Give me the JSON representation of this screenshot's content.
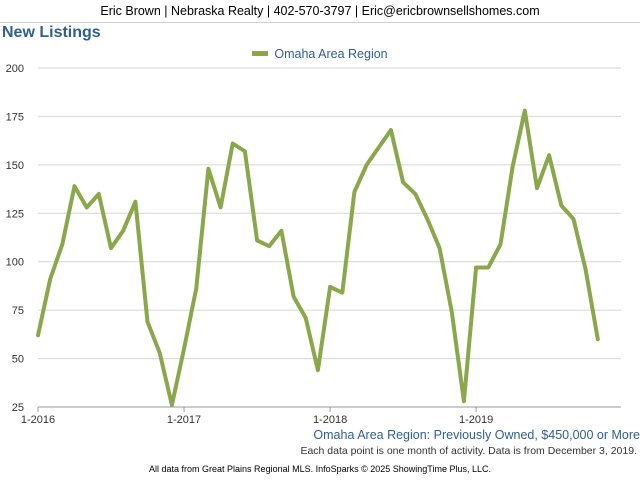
{
  "header": {
    "contact": "Eric Brown | Nebraska Realty | 402-570-3797 | Eric@ericbrownsellshomes.com"
  },
  "chart_title": "New Listings",
  "legend_label": "Omaha Area Region",
  "subtitle": "Omaha Area Region: Previously Owned, $450,000 or More",
  "note": "Each data point is one month of activity. Data is from December 3, 2019.",
  "footer": "All data from Great Plains Regional MLS. InfoSparks © 2025 ShowingTime Plus, LLC.",
  "colors": {
    "series": "#8aa84b",
    "title": "#2f5f91",
    "grid": "#d6d6d6"
  },
  "chart_data": {
    "type": "line",
    "title": "New Listings",
    "ylim": [
      25,
      200
    ],
    "yticks": [
      25,
      50,
      75,
      100,
      125,
      150,
      175,
      200
    ],
    "xtick_labels": [
      "1-2016",
      "1-2017",
      "1-2018",
      "1-2019"
    ],
    "grid": true,
    "legend_position": "top-center",
    "x": [
      "2016-01",
      "2016-02",
      "2016-03",
      "2016-04",
      "2016-05",
      "2016-06",
      "2016-07",
      "2016-08",
      "2016-09",
      "2016-10",
      "2016-11",
      "2016-12",
      "2017-01",
      "2017-02",
      "2017-03",
      "2017-04",
      "2017-05",
      "2017-06",
      "2017-07",
      "2017-08",
      "2017-09",
      "2017-10",
      "2017-11",
      "2017-12",
      "2018-01",
      "2018-02",
      "2018-03",
      "2018-04",
      "2018-05",
      "2018-06",
      "2018-07",
      "2018-08",
      "2018-09",
      "2018-10",
      "2018-11",
      "2018-12",
      "2019-01",
      "2019-02",
      "2019-03",
      "2019-04",
      "2019-05",
      "2019-06",
      "2019-07",
      "2019-08",
      "2019-09",
      "2019-10",
      "2019-11"
    ],
    "series": [
      {
        "name": "Omaha Area Region",
        "values": [
          62,
          91,
          109,
          139,
          128,
          135,
          107,
          116,
          131,
          69,
          53,
          26,
          55,
          86,
          148,
          128,
          161,
          157,
          111,
          108,
          116,
          82,
          71,
          44,
          87,
          84,
          136,
          150,
          159,
          168,
          141,
          135,
          122,
          107,
          74,
          28,
          97,
          97,
          109,
          149,
          178,
          138,
          155,
          129,
          122,
          96,
          60
        ]
      }
    ]
  }
}
